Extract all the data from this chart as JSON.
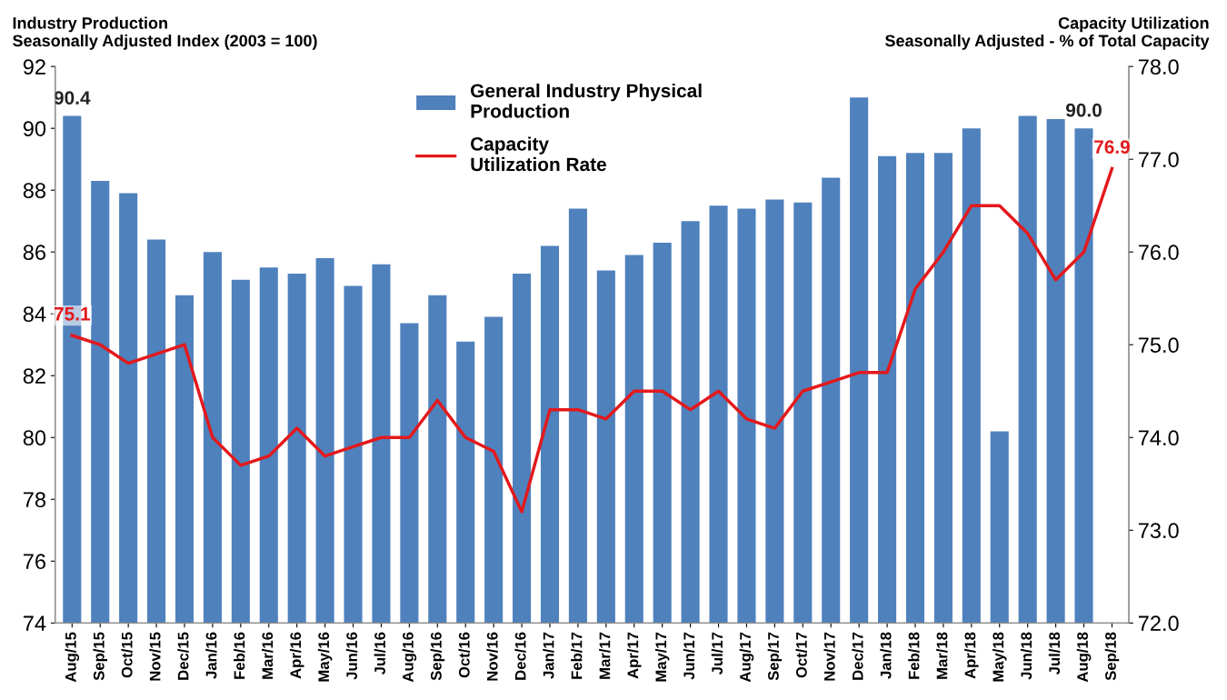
{
  "chart_data": {
    "type": "bar",
    "ylabel": "Industry Production\nSeasonally Adjusted Index (2003 = 100)",
    "y2label": "Capacity Utilization\nSeasonally Adjusted - % of Total Capacity",
    "categories": [
      "Aug/15",
      "Sep/15",
      "Oct/15",
      "Nov/15",
      "Dec/15",
      "Jan/16",
      "Feb/16",
      "Mar/16",
      "Apr/16",
      "May/16",
      "Jun/16",
      "Jul/16",
      "Aug/16",
      "Sep/16",
      "Oct/16",
      "Nov/16",
      "Dec/16",
      "Jan/17",
      "Feb/17",
      "Mar/17",
      "Apr/17",
      "May/17",
      "Jun/17",
      "Jul/17",
      "Aug/17",
      "Sep/17",
      "Oct/17",
      "Nov/17",
      "Dec/17",
      "Jan/18",
      "Feb/18",
      "Mar/18",
      "Apr/18",
      "May/18",
      "Jun/18",
      "Jul/18",
      "Aug/18",
      "Sep/18"
    ],
    "series": [
      {
        "name": "General Industry Physical\nProduction",
        "color": "#4f81bd",
        "values": [
          90.4,
          88.3,
          87.9,
          86.4,
          84.6,
          86.0,
          85.1,
          85.5,
          85.3,
          85.8,
          84.9,
          85.6,
          83.7,
          84.6,
          83.1,
          83.9,
          85.3,
          86.2,
          87.4,
          85.4,
          85.9,
          86.3,
          87.0,
          87.5,
          87.4,
          87.7,
          87.6,
          88.4,
          91.0,
          89.1,
          89.2,
          89.2,
          90.0,
          80.2,
          90.4,
          90.3,
          90.0,
          null
        ],
        "value_labels": [
          "90.4",
          null,
          null,
          null,
          null,
          null,
          null,
          null,
          null,
          null,
          null,
          null,
          null,
          null,
          null,
          null,
          null,
          null,
          null,
          null,
          null,
          null,
          null,
          null,
          null,
          null,
          null,
          null,
          null,
          null,
          null,
          null,
          null,
          null,
          null,
          null,
          "90.0",
          null
        ]
      },
      {
        "name": "Capacity\nUtilization Rate",
        "type": "line",
        "axis": "y2",
        "color": "#e3191c",
        "values": [
          75.1,
          75.0,
          74.8,
          74.9,
          75.0,
          74.0,
          73.7,
          73.8,
          74.1,
          73.8,
          73.9,
          74.0,
          74.0,
          74.4,
          74.0,
          73.85,
          73.2,
          74.3,
          74.3,
          74.2,
          74.5,
          74.5,
          74.3,
          74.5,
          74.2,
          74.1,
          74.5,
          74.6,
          74.7,
          74.7,
          75.6,
          76.0,
          76.5,
          76.5,
          76.2,
          75.7,
          76.0,
          76.9
        ],
        "value_labels": [
          "75.1",
          null,
          null,
          null,
          null,
          null,
          null,
          null,
          null,
          null,
          null,
          null,
          null,
          null,
          null,
          null,
          null,
          null,
          null,
          null,
          null,
          null,
          null,
          null,
          null,
          null,
          null,
          null,
          null,
          null,
          null,
          null,
          null,
          null,
          null,
          null,
          null,
          "76.9"
        ]
      }
    ],
    "ylim": [
      74,
      92
    ],
    "yticks": [
      74,
      76,
      78,
      80,
      82,
      84,
      86,
      88,
      90,
      92
    ],
    "y2lim": [
      72,
      78
    ],
    "y2ticks": [
      {
        "value": 72,
        "label": "72.0"
      },
      {
        "value": 73,
        "label": "73.0"
      },
      {
        "value": 74,
        "label": "74.0"
      },
      {
        "value": 75,
        "label": "75.0"
      },
      {
        "value": 76,
        "label": "76.0"
      },
      {
        "value": 77,
        "label": "77.0"
      },
      {
        "value": 78,
        "label": "78.0"
      }
    ],
    "legend": "top",
    "grid": false
  }
}
